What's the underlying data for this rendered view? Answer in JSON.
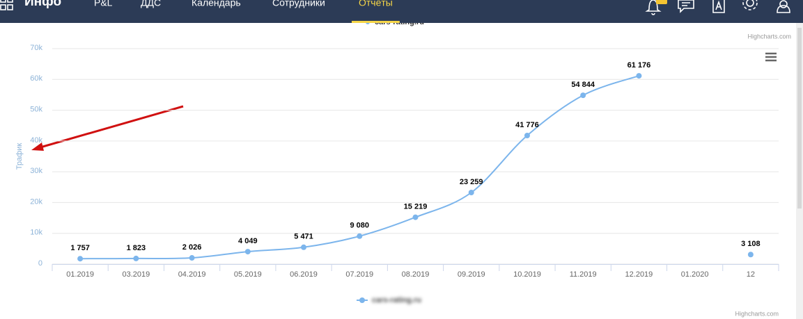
{
  "nav": {
    "brand": "Инфо",
    "items": [
      "P&L",
      "ДДС",
      "Календарь",
      "Сотрудники",
      "Отчёты"
    ],
    "active": 4
  },
  "upper_chart": {
    "legend": "cars-rating.ru",
    "credits": "Highcharts.com"
  },
  "chart_data": {
    "type": "line",
    "y_label": "Трафик",
    "credits": "Highcharts.com",
    "categories": [
      "01.2019",
      "03.2019",
      "04.2019",
      "05.2019",
      "06.2019",
      "07.2019",
      "08.2019",
      "09.2019",
      "10.2019",
      "11.2019",
      "12.2019",
      "01.2020",
      "12"
    ],
    "series": [
      {
        "name": "cars-rating.ru",
        "color": "#7cb5ec",
        "values": [
          1757,
          1823,
          2026,
          4049,
          5471,
          9080,
          15219,
          23259,
          41776,
          54844,
          61176,
          null,
          3108
        ],
        "value_labels": [
          "1 757",
          "1 823",
          "2 026",
          "4 049",
          "5 471",
          "9 080",
          "15 219",
          "23 259",
          "41 776",
          "54 844",
          "61 176",
          null,
          "3 108"
        ]
      }
    ],
    "ylim": [
      0,
      70000
    ],
    "yticks": [
      {
        "value": 0,
        "label": "0"
      },
      {
        "value": 10000,
        "label": "10k"
      },
      {
        "value": 20000,
        "label": "20k"
      },
      {
        "value": 30000,
        "label": "30k"
      },
      {
        "value": 40000,
        "label": "40k"
      },
      {
        "value": 50000,
        "label": "50k"
      },
      {
        "value": 60000,
        "label": "60k"
      },
      {
        "value": 70000,
        "label": "70k"
      }
    ],
    "grid": true
  }
}
